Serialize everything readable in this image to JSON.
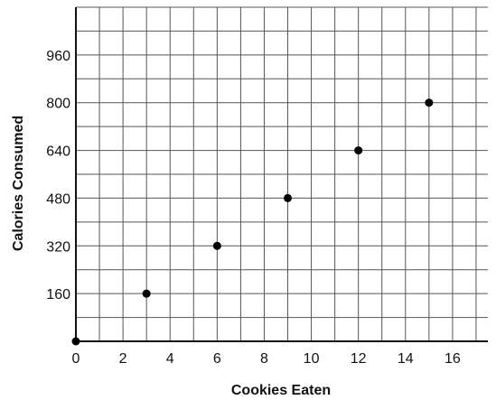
{
  "chart_data": {
    "type": "scatter",
    "xlabel": "Cookies Eaten",
    "ylabel": "Calories Consumed",
    "xlim": [
      0,
      17.5
    ],
    "ylim": [
      0,
      1120
    ],
    "x_ticks": [
      0,
      2,
      4,
      6,
      8,
      10,
      12,
      14,
      16
    ],
    "y_ticks": [
      160,
      320,
      480,
      640,
      800,
      960
    ],
    "x_tick_labels": [
      "0",
      "2",
      "4",
      "6",
      "8",
      "10",
      "12",
      "14",
      "16"
    ],
    "y_tick_labels": [
      "160",
      "320",
      "480",
      "640",
      "800",
      "960"
    ],
    "grid": true,
    "x_grid_step": 1,
    "y_grid_step": 80,
    "series": [
      {
        "points": [
          {
            "x": 0,
            "y": 0
          },
          {
            "x": 3,
            "y": 160
          },
          {
            "x": 6,
            "y": 320
          },
          {
            "x": 9,
            "y": 480
          },
          {
            "x": 12,
            "y": 640
          },
          {
            "x": 15,
            "y": 800
          }
        ]
      }
    ]
  }
}
